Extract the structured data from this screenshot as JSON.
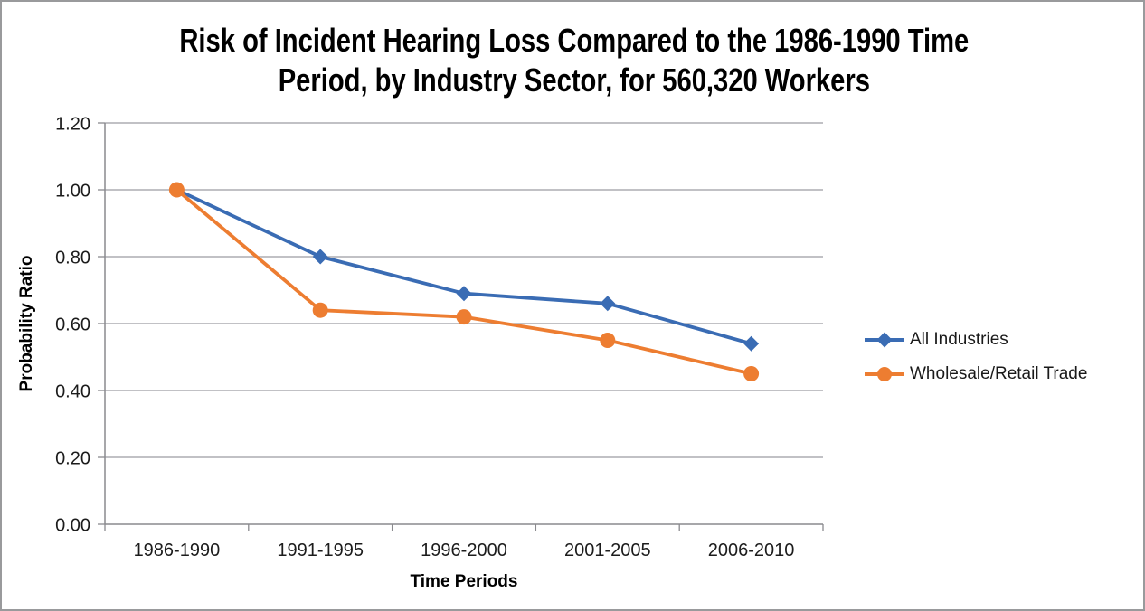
{
  "frame": {
    "border_color": "#999a9c",
    "background_color": "#ffffff"
  },
  "title": {
    "text": "Risk of Incident Hearing Loss Compared to the 1986-1990 Time Period, by Industry Sector, for 560,320 Workers",
    "line1": "Risk of Incident Hearing Loss Compared to the 1986-1990 Time",
    "line2": "Period, by Industry Sector, for 560,320 Workers"
  },
  "chart_data": {
    "type": "line",
    "title": "Risk of Incident Hearing Loss Compared to the 1986-1990 Time Period, by Industry Sector, for 560,320 Workers",
    "xlabel": "Time Periods",
    "ylabel": "Probability Ratio",
    "categories": [
      "1986-1990",
      "1991-1995",
      "1996-2000",
      "2001-2005",
      "2006-2010"
    ],
    "series": [
      {
        "name": "All Industries",
        "values": [
          1.0,
          0.8,
          0.69,
          0.66,
          0.54
        ],
        "color": "#3a6cb4",
        "marker": "diamond"
      },
      {
        "name": "Wholesale/Retail Trade",
        "values": [
          1.0,
          0.64,
          0.62,
          0.55,
          0.45
        ],
        "color": "#ed7d31",
        "marker": "circle"
      }
    ],
    "ylim": [
      0,
      1.2
    ],
    "y_tick_step": 0.2,
    "y_tick_labels": [
      "0.00",
      "0.20",
      "0.40",
      "0.60",
      "0.80",
      "1.00",
      "1.20"
    ],
    "grid": true,
    "legend_position": "right",
    "colors": {
      "gridline": "#9c9ca2",
      "axis": "#8a8a8e",
      "tick_label": "#1c1c1c",
      "title_text": "#000000"
    }
  }
}
